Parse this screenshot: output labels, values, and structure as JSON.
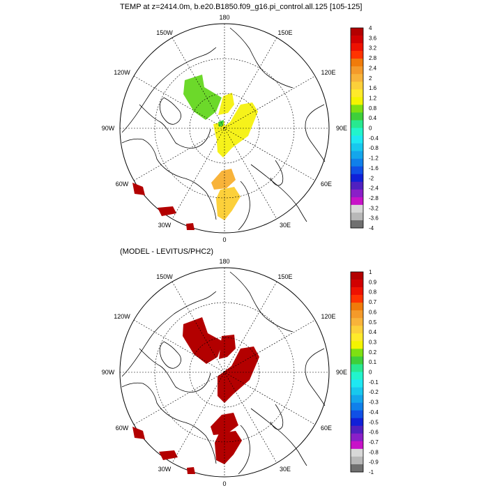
{
  "panels": [
    {
      "title": "TEMP at z=2414.0m, b.e20.B1850.f09_g16.pi_control.all.125 [105-125]",
      "lon_labels": {
        "top": "180",
        "bottom": "0",
        "left": "90W",
        "right": "90E",
        "ul1": "150W",
        "ul2": "120W",
        "ur1": "150E",
        "ur2": "120E",
        "ll1": "60W",
        "ll2": "30W",
        "lr1": "60E",
        "lr2": "30E"
      },
      "colorbar": {
        "labels": [
          "4",
          "3.6",
          "3.2",
          "2.8",
          "2.4",
          "2",
          "1.6",
          "1.2",
          "0.8",
          "0.4",
          "0",
          "-0.4",
          "-0.8",
          "-1.2",
          "-1.6",
          "-2",
          "-2.4",
          "-2.8",
          "-3.2",
          "-3.6",
          "-4"
        ],
        "colors": [
          "#b30000",
          "#d10000",
          "#ee1100",
          "#ff3300",
          "#f07b0a",
          "#f49a2a",
          "#f8b33a",
          "#fcd03a",
          "#ffea2a",
          "#f4f400",
          "#7ee012",
          "#3ecf3a",
          "#28e890",
          "#22f4cc",
          "#1ee8f2",
          "#18c8ee",
          "#14a6ec",
          "#1080ea",
          "#1050e6",
          "#1020d8",
          "#5020c0",
          "#8a1fc8",
          "#c812c8",
          "#d8d8d8",
          "#b8b8b8",
          "#707070"
        ]
      },
      "regions": [
        {
          "color": "#6cd92a",
          "points": [
            [
              265,
              115
            ],
            [
              290,
              107
            ],
            [
              293,
              125
            ],
            [
              318,
              140
            ],
            [
              310,
              160
            ],
            [
              295,
              172
            ],
            [
              278,
              160
            ],
            [
              263,
              135
            ]
          ]
        },
        {
          "color": "#f6f21a",
          "points": [
            [
              320,
              138
            ],
            [
              333,
              133
            ],
            [
              336,
              150
            ],
            [
              327,
              162
            ],
            [
              313,
              165
            ]
          ]
        },
        {
          "color": "#f6f21a",
          "points": [
            [
              345,
              150
            ],
            [
              362,
              147
            ],
            [
              370,
              160
            ],
            [
              356,
              195
            ],
            [
              333,
              212
            ],
            [
              320,
              226
            ],
            [
              312,
              218
            ],
            [
              310,
              190
            ],
            [
              330,
              175
            ]
          ]
        },
        {
          "color": "#f6f21a",
          "points": [
            [
              306,
              178
            ],
            [
              322,
              174
            ],
            [
              322,
              190
            ],
            [
              310,
              198
            ]
          ]
        },
        {
          "color": "#3ecf3a",
          "points": [
            [
              313,
              175
            ],
            [
              321,
              172
            ],
            [
              320,
              180
            ],
            [
              314,
              182
            ]
          ]
        },
        {
          "color": "#f8b33a",
          "points": [
            [
              318,
              245
            ],
            [
              332,
              242
            ],
            [
              338,
              258
            ],
            [
              325,
              270
            ],
            [
              307,
              272
            ],
            [
              303,
              262
            ]
          ]
        },
        {
          "color": "#fcd03a",
          "points": [
            [
              316,
              272
            ],
            [
              336,
              268
            ],
            [
              345,
              282
            ],
            [
              333,
              302
            ],
            [
              322,
              316
            ],
            [
              312,
              310
            ],
            [
              310,
              285
            ]
          ]
        },
        {
          "color": "#b30000",
          "points": [
            [
              190,
              262
            ],
            [
              205,
              268
            ],
            [
              208,
              280
            ],
            [
              193,
              278
            ]
          ]
        },
        {
          "color": "#b30000",
          "points": [
            [
              226,
              298
            ],
            [
              248,
              296
            ],
            [
              253,
              306
            ],
            [
              232,
              310
            ]
          ]
        },
        {
          "color": "#b30000",
          "points": [
            [
              267,
              321
            ],
            [
              277,
              320
            ],
            [
              279,
              330
            ],
            [
              268,
              330
            ]
          ]
        }
      ]
    },
    {
      "title": "(MODEL - LEVITUS/PHC2)",
      "lon_labels": {
        "top": "180",
        "bottom": "0",
        "left": "90W",
        "right": "90E",
        "ul1": "150W",
        "ul2": "120W",
        "ur1": "150E",
        "ur2": "120E",
        "ll1": "60W",
        "ll2": "30W",
        "lr1": "60E",
        "lr2": "30E"
      },
      "colorbar": {
        "labels": [
          "1",
          "0.9",
          "0.8",
          "0.7",
          "0.6",
          "0.5",
          "0.4",
          "0.3",
          "0.2",
          "0.1",
          "0",
          "-0.1",
          "-0.2",
          "-0.3",
          "-0.4",
          "-0.5",
          "-0.6",
          "-0.7",
          "-0.8",
          "-0.9",
          "-1"
        ],
        "colors": [
          "#b30000",
          "#d10000",
          "#ee1100",
          "#ff3300",
          "#f07b0a",
          "#f49a2a",
          "#f8b33a",
          "#fcd03a",
          "#ffea2a",
          "#f4f400",
          "#7ee012",
          "#3ecf3a",
          "#28e890",
          "#22f4cc",
          "#1ee8f2",
          "#18c8ee",
          "#14a6ec",
          "#1080ea",
          "#1050e6",
          "#1020d8",
          "#5020c0",
          "#8a1fc8",
          "#c812c8",
          "#d8d8d8",
          "#b8b8b8",
          "#707070"
        ]
      },
      "regions": [
        {
          "color": "#b30000",
          "points": [
            [
              263,
              465
            ],
            [
              290,
              455
            ],
            [
              298,
              478
            ],
            [
              320,
              490
            ],
            [
              312,
              512
            ],
            [
              296,
              522
            ],
            [
              278,
              508
            ],
            [
              262,
              482
            ]
          ]
        },
        {
          "color": "#b30000",
          "points": [
            [
              345,
              500
            ],
            [
              364,
              497
            ],
            [
              372,
              512
            ],
            [
              358,
              545
            ],
            [
              335,
              565
            ],
            [
              322,
              578
            ],
            [
              312,
              568
            ],
            [
              312,
              540
            ],
            [
              332,
              525
            ]
          ]
        },
        {
          "color": "#b30000",
          "points": [
            [
              318,
              482
            ],
            [
              336,
              480
            ],
            [
              338,
              500
            ],
            [
              326,
              512
            ],
            [
              314,
              515
            ]
          ]
        },
        {
          "color": "#b30000",
          "points": [
            [
              318,
              595
            ],
            [
              335,
              592
            ],
            [
              342,
              610
            ],
            [
              326,
              622
            ],
            [
              306,
              624
            ],
            [
              302,
              612
            ]
          ]
        },
        {
          "color": "#b30000",
          "points": [
            [
              314,
              622
            ],
            [
              338,
              618
            ],
            [
              347,
              632
            ],
            [
              335,
              652
            ],
            [
              322,
              666
            ],
            [
              310,
              660
            ],
            [
              308,
              635
            ]
          ]
        },
        {
          "color": "#b30000",
          "points": [
            [
              190,
              612
            ],
            [
              205,
              618
            ],
            [
              208,
              630
            ],
            [
              193,
              628
            ]
          ]
        },
        {
          "color": "#b30000",
          "points": [
            [
              228,
              648
            ],
            [
              250,
              646
            ],
            [
              255,
              656
            ],
            [
              234,
              660
            ]
          ]
        },
        {
          "color": "#b30000",
          "points": [
            [
              268,
              671
            ],
            [
              278,
              670
            ],
            [
              280,
              680
            ],
            [
              269,
              680
            ]
          ]
        }
      ]
    }
  ]
}
